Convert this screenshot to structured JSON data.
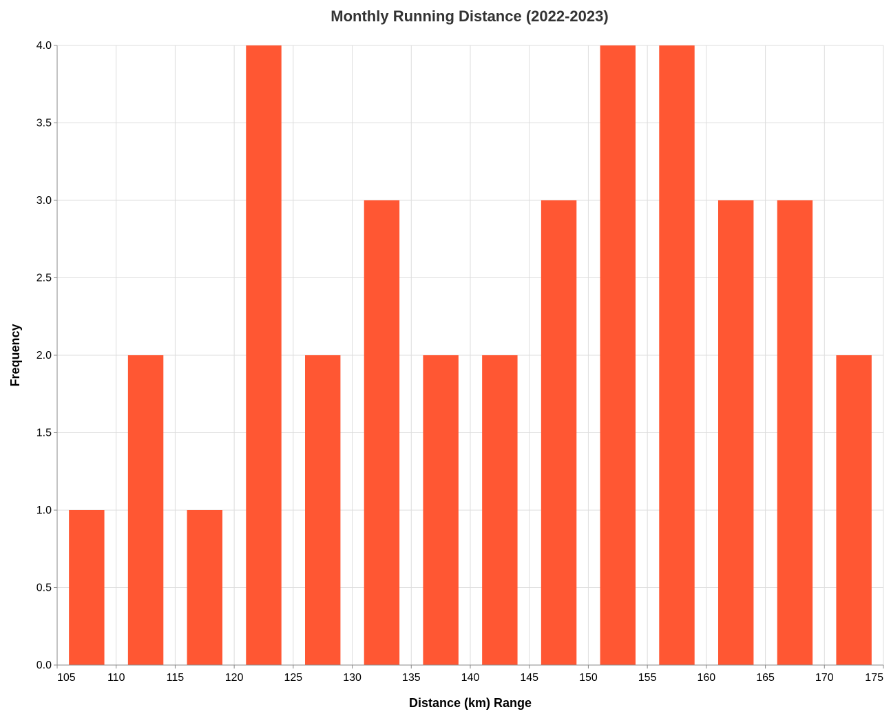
{
  "chart_data": {
    "type": "bar",
    "title": "Monthly Running Distance (2022-2023)",
    "xlabel": "Distance (km) Range",
    "ylabel": "Frequency",
    "bin_width": 5,
    "bins": [
      {
        "start": 105,
        "end": 110,
        "count": 1
      },
      {
        "start": 110,
        "end": 115,
        "count": 2
      },
      {
        "start": 115,
        "end": 120,
        "count": 1
      },
      {
        "start": 120,
        "end": 125,
        "count": 4
      },
      {
        "start": 125,
        "end": 130,
        "count": 2
      },
      {
        "start": 130,
        "end": 135,
        "count": 3
      },
      {
        "start": 135,
        "end": 140,
        "count": 2
      },
      {
        "start": 140,
        "end": 145,
        "count": 2
      },
      {
        "start": 145,
        "end": 150,
        "count": 3
      },
      {
        "start": 150,
        "end": 155,
        "count": 4
      },
      {
        "start": 155,
        "end": 160,
        "count": 4
      },
      {
        "start": 160,
        "end": 165,
        "count": 3
      },
      {
        "start": 165,
        "end": 170,
        "count": 3
      },
      {
        "start": 170,
        "end": 175,
        "count": 2
      }
    ],
    "xlim": [
      105,
      175
    ],
    "ylim": [
      0,
      4
    ],
    "x_ticks": [
      "105",
      "110",
      "115",
      "120",
      "125",
      "130",
      "135",
      "140",
      "145",
      "150",
      "155",
      "160",
      "165",
      "170",
      "175"
    ],
    "y_ticks": [
      "0.0",
      "0.5",
      "1.0",
      "1.5",
      "2.0",
      "2.5",
      "3.0",
      "3.5",
      "4.0"
    ],
    "grid": true,
    "bar_color": "#ff5733"
  }
}
